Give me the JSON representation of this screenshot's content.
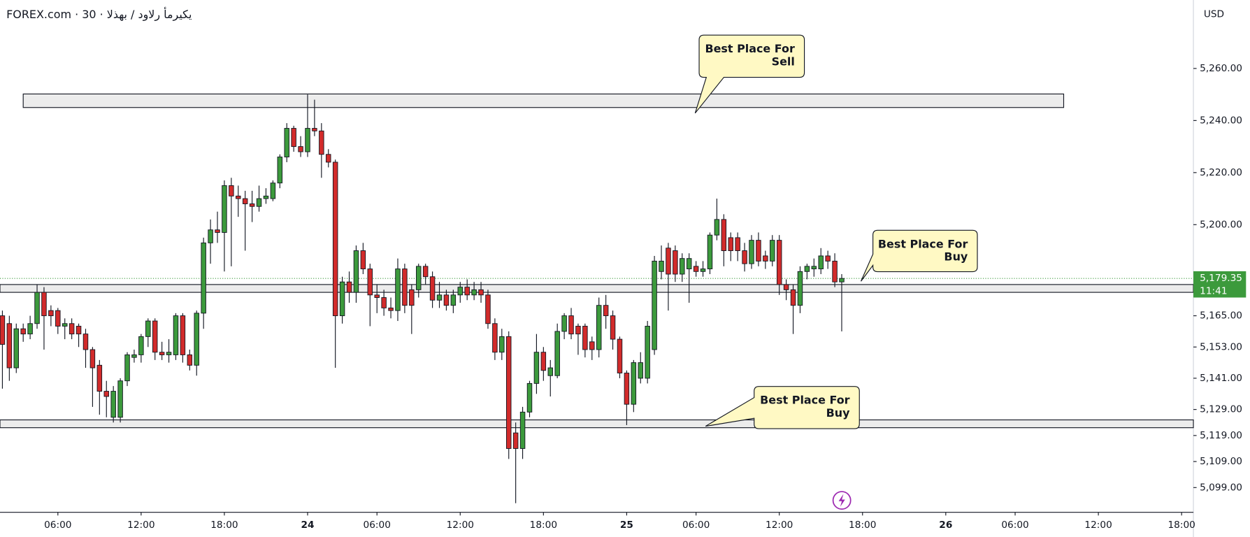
{
  "chart_data": {
    "type": "candlestick",
    "title": "FOREX.com · 30 · يكيرمأ رلاود / بهذلا",
    "currency": "USD",
    "up_color": "#3c9a3c",
    "down_color": "#d22b2b",
    "ohlc": [
      [
        5165,
        5167,
        5137,
        5154
      ],
      [
        5162,
        5165,
        5140,
        5145
      ],
      [
        5145,
        5162,
        5143,
        5160
      ],
      [
        5160,
        5162,
        5155,
        5158
      ],
      [
        5158,
        5165,
        5156,
        5162
      ],
      [
        5162,
        5177,
        5160,
        5174
      ],
      [
        5174,
        5176,
        5152,
        5165
      ],
      [
        5167,
        5169,
        5161,
        5165
      ],
      [
        5167,
        5168,
        5158,
        5161
      ],
      [
        5161,
        5164,
        5156,
        5162
      ],
      [
        5162,
        5164,
        5156,
        5158
      ],
      [
        5161,
        5162,
        5153,
        5158
      ],
      [
        5158,
        5160,
        5145,
        5152
      ],
      [
        5152,
        5153,
        5130,
        5145
      ],
      [
        5146,
        5148,
        5127,
        5136
      ],
      [
        5136,
        5140,
        5126,
        5134
      ],
      [
        5126,
        5138,
        5124,
        5136
      ],
      [
        5126,
        5141,
        5124,
        5140
      ],
      [
        5140,
        5151,
        5138,
        5150
      ],
      [
        5149,
        5152,
        5147,
        5150
      ],
      [
        5150,
        5158,
        5147,
        5157
      ],
      [
        5157,
        5164,
        5153,
        5163
      ],
      [
        5163,
        5164,
        5148,
        5151
      ],
      [
        5151,
        5155,
        5148,
        5150
      ],
      [
        5150,
        5156,
        5147,
        5151
      ],
      [
        5150,
        5166,
        5148,
        5165
      ],
      [
        5165,
        5166,
        5147,
        5150
      ],
      [
        5150,
        5152,
        5144,
        5146
      ],
      [
        5146,
        5167,
        5142,
        5166
      ],
      [
        5166,
        5195,
        5160,
        5193
      ],
      [
        5193,
        5202,
        5185,
        5198
      ],
      [
        5198,
        5205,
        5193,
        5197
      ],
      [
        5197,
        5217,
        5182,
        5215
      ],
      [
        5215,
        5218,
        5184,
        5211
      ],
      [
        5211,
        5215,
        5203,
        5210
      ],
      [
        5210,
        5213,
        5190,
        5208
      ],
      [
        5208,
        5213,
        5201,
        5207
      ],
      [
        5207,
        5215,
        5205,
        5210
      ],
      [
        5210,
        5214,
        5208,
        5211
      ],
      [
        5210,
        5217,
        5209,
        5216
      ],
      [
        5216,
        5227,
        5214,
        5226
      ],
      [
        5226,
        5239,
        5224,
        5237
      ],
      [
        5237,
        5238,
        5228,
        5230
      ],
      [
        5230,
        5234,
        5226,
        5228
      ],
      [
        5228,
        5250,
        5226,
        5237
      ],
      [
        5237,
        5248,
        5234,
        5236
      ],
      [
        5236,
        5239,
        5218,
        5227
      ],
      [
        5227,
        5229,
        5222,
        5224
      ],
      [
        5224,
        5225,
        5145,
        5165
      ],
      [
        5165,
        5180,
        5162,
        5178
      ],
      [
        5178,
        5182,
        5170,
        5174
      ],
      [
        5174,
        5192,
        5170,
        5190
      ],
      [
        5190,
        5193,
        5181,
        5183
      ],
      [
        5183,
        5185,
        5161,
        5173
      ],
      [
        5173,
        5177,
        5166,
        5172
      ],
      [
        5172,
        5175,
        5165,
        5168
      ],
      [
        5168,
        5172,
        5164,
        5167
      ],
      [
        5167,
        5187,
        5163,
        5183
      ],
      [
        5183,
        5185,
        5166,
        5169
      ],
      [
        5175,
        5177,
        5158,
        5169
      ],
      [
        5175,
        5185,
        5172,
        5184
      ],
      [
        5184,
        5185,
        5177,
        5180
      ],
      [
        5180,
        5182,
        5168,
        5171
      ],
      [
        5171,
        5178,
        5168,
        5173
      ],
      [
        5173,
        5175,
        5167,
        5169
      ],
      [
        5169,
        5175,
        5166,
        5173
      ],
      [
        5173,
        5178,
        5170,
        5176
      ],
      [
        5176,
        5179,
        5171,
        5173
      ],
      [
        5173,
        5178,
        5171,
        5175
      ],
      [
        5175,
        5178,
        5170,
        5173
      ],
      [
        5173,
        5175,
        5160,
        5162
      ],
      [
        5162,
        5164,
        5148,
        5151
      ],
      [
        5151,
        5160,
        5148,
        5157
      ],
      [
        5157,
        5159,
        5110,
        5114
      ],
      [
        5120,
        5124,
        5093,
        5114
      ],
      [
        5114,
        5130,
        5110,
        5128
      ],
      [
        5128,
        5140,
        5126,
        5139
      ],
      [
        5139,
        5158,
        5135,
        5151
      ],
      [
        5151,
        5153,
        5140,
        5144
      ],
      [
        5142,
        5148,
        5134,
        5145
      ],
      [
        5142,
        5162,
        5141,
        5159
      ],
      [
        5159,
        5166,
        5156,
        5165
      ],
      [
        5165,
        5168,
        5156,
        5158
      ],
      [
        5161,
        5162,
        5150,
        5158
      ],
      [
        5161,
        5162,
        5149,
        5152
      ],
      [
        5155,
        5157,
        5148,
        5152
      ],
      [
        5152,
        5172,
        5149,
        5169
      ],
      [
        5169,
        5173,
        5160,
        5165
      ],
      [
        5165,
        5167,
        5152,
        5156
      ],
      [
        5156,
        5157,
        5141,
        5143
      ],
      [
        5143,
        5144,
        5123,
        5131
      ],
      [
        5131,
        5148,
        5128,
        5147
      ],
      [
        5141,
        5151,
        5139,
        5147
      ],
      [
        5141,
        5163,
        5139,
        5161
      ],
      [
        5152,
        5188,
        5150,
        5186
      ],
      [
        5182,
        5192,
        5179,
        5186
      ],
      [
        5191,
        5193,
        5167,
        5181
      ],
      [
        5190,
        5192,
        5178,
        5181
      ],
      [
        5181,
        5189,
        5178,
        5187
      ],
      [
        5183,
        5189,
        5170,
        5187
      ],
      [
        5184,
        5186,
        5180,
        5182
      ],
      [
        5182,
        5186,
        5180,
        5183
      ],
      [
        5183,
        5197,
        5181,
        5196
      ],
      [
        5196,
        5210,
        5194,
        5202
      ],
      [
        5202,
        5204,
        5184,
        5190
      ],
      [
        5195,
        5197,
        5186,
        5190
      ],
      [
        5195,
        5197,
        5186,
        5190
      ],
      [
        5190,
        5193,
        5182,
        5185
      ],
      [
        5185,
        5196,
        5183,
        5194
      ],
      [
        5194,
        5197,
        5184,
        5186
      ],
      [
        5188,
        5190,
        5183,
        5186
      ],
      [
        5186,
        5196,
        5184,
        5194
      ],
      [
        5194,
        5196,
        5173,
        5177
      ],
      [
        5177,
        5179,
        5171,
        5175
      ],
      [
        5175,
        5177,
        5158,
        5169
      ],
      [
        5169,
        5184,
        5166,
        5182
      ],
      [
        5182,
        5185,
        5179,
        5184
      ],
      [
        5183,
        5187,
        5180,
        5184
      ],
      [
        5183,
        5191,
        5181,
        5188
      ],
      [
        5188,
        5190,
        5183,
        5186
      ],
      [
        5186,
        5189,
        5176,
        5178
      ],
      [
        5178,
        5181,
        5159,
        5179.35
      ]
    ],
    "ylim": [
      5089.5,
      5286.3
    ],
    "yticks": [
      {
        "value": 5260,
        "label": "5,260.00"
      },
      {
        "value": 5240,
        "label": "5,240.00"
      },
      {
        "value": 5220,
        "label": "5,220.00"
      },
      {
        "value": 5200,
        "label": "5,200.00"
      },
      {
        "value": 5165,
        "label": "5,165.00"
      },
      {
        "value": 5153,
        "label": "5,153.00"
      },
      {
        "value": 5141,
        "label": "5,141.00"
      },
      {
        "value": 5129,
        "label": "5,129.00"
      },
      {
        "value": 5119,
        "label": "5,119.00"
      },
      {
        "value": 5109,
        "label": "5,109.00"
      },
      {
        "value": 5099,
        "label": "5,099.00"
      }
    ],
    "xlim": [
      -0.345,
      171.7
    ],
    "xticks": [
      {
        "value": 8,
        "label": "06:00"
      },
      {
        "value": 20,
        "label": "12:00"
      },
      {
        "value": 32,
        "label": "18:00"
      },
      {
        "value": 44,
        "label": "24"
      },
      {
        "value": 54,
        "label": "06:00"
      },
      {
        "value": 66,
        "label": "12:00"
      },
      {
        "value": 78,
        "label": "18:00"
      },
      {
        "value": 90,
        "label": "25"
      },
      {
        "value": 100,
        "label": "06:00"
      },
      {
        "value": 112,
        "label": "12:00"
      },
      {
        "value": 124,
        "label": "18:00"
      },
      {
        "value": 136,
        "label": "26"
      },
      {
        "value": 146,
        "label": "06:00"
      },
      {
        "value": 158,
        "label": "12:00"
      },
      {
        "value": 170,
        "label": "18:00"
      }
    ],
    "zones": [
      {
        "from": 5250.2,
        "to": 5245.0,
        "x": [
          3,
          153
        ]
      },
      {
        "from": 5177.0,
        "to": 5174.0
      },
      {
        "from": 5125.0,
        "to": 5122.0
      }
    ],
    "callouts": [
      {
        "lines": [
          "Best Place For",
          "Sell"
        ]
      },
      {
        "lines": [
          "Best Place For",
          "Buy"
        ]
      },
      {
        "lines": [
          "Best Place For",
          "Buy"
        ]
      }
    ],
    "last_price": {
      "value": 5179.35,
      "label": "5,179.35"
    },
    "countdown": "11:41"
  }
}
